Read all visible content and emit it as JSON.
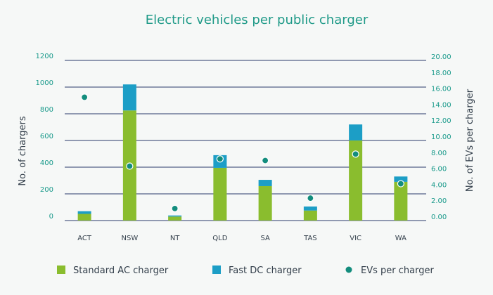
{
  "chart_data": {
    "type": "bar",
    "title": "Electric vehicles per public charger",
    "categories": [
      "ACT",
      "NSW",
      "NT",
      "QLD",
      "SA",
      "TAS",
      "VIC",
      "WA"
    ],
    "series": [
      {
        "name": "Standard AC charger",
        "kind": "bar",
        "stack": "chargers",
        "color": "#8abd2e",
        "values": [
          50,
          825,
          30,
          395,
          258,
          75,
          600,
          290
        ]
      },
      {
        "name": "Fast DC charger",
        "kind": "bar",
        "stack": "chargers",
        "color": "#1c9ec6",
        "values": [
          20,
          195,
          8,
          95,
          47,
          30,
          120,
          40
        ]
      },
      {
        "name": "EVs per charger",
        "kind": "scatter",
        "axis": "right",
        "color": "#138d7d",
        "values": [
          15.4,
          6.8,
          1.5,
          7.7,
          7.5,
          2.8,
          8.3,
          4.6
        ]
      }
    ],
    "ylabel": "No. of chargers",
    "y2label": "No. of EVs per charger",
    "ylim": [
      0,
      1200
    ],
    "y2lim": [
      0,
      20
    ],
    "yticks": [
      "0",
      "200",
      "400",
      "600",
      "800",
      "1000",
      "1200"
    ],
    "y2ticks": [
      "0.00",
      "2.00",
      "4.00",
      "6.00",
      "8.00",
      "10.00",
      "12.00",
      "14.00",
      "16.00",
      "18.00",
      "20.00"
    ],
    "grid": true,
    "legend": "bottom"
  },
  "colors": {
    "grid": "#2b3a6b",
    "tick": "#1a9a8b",
    "title": "#1f9a88",
    "text": "#333f4b"
  }
}
